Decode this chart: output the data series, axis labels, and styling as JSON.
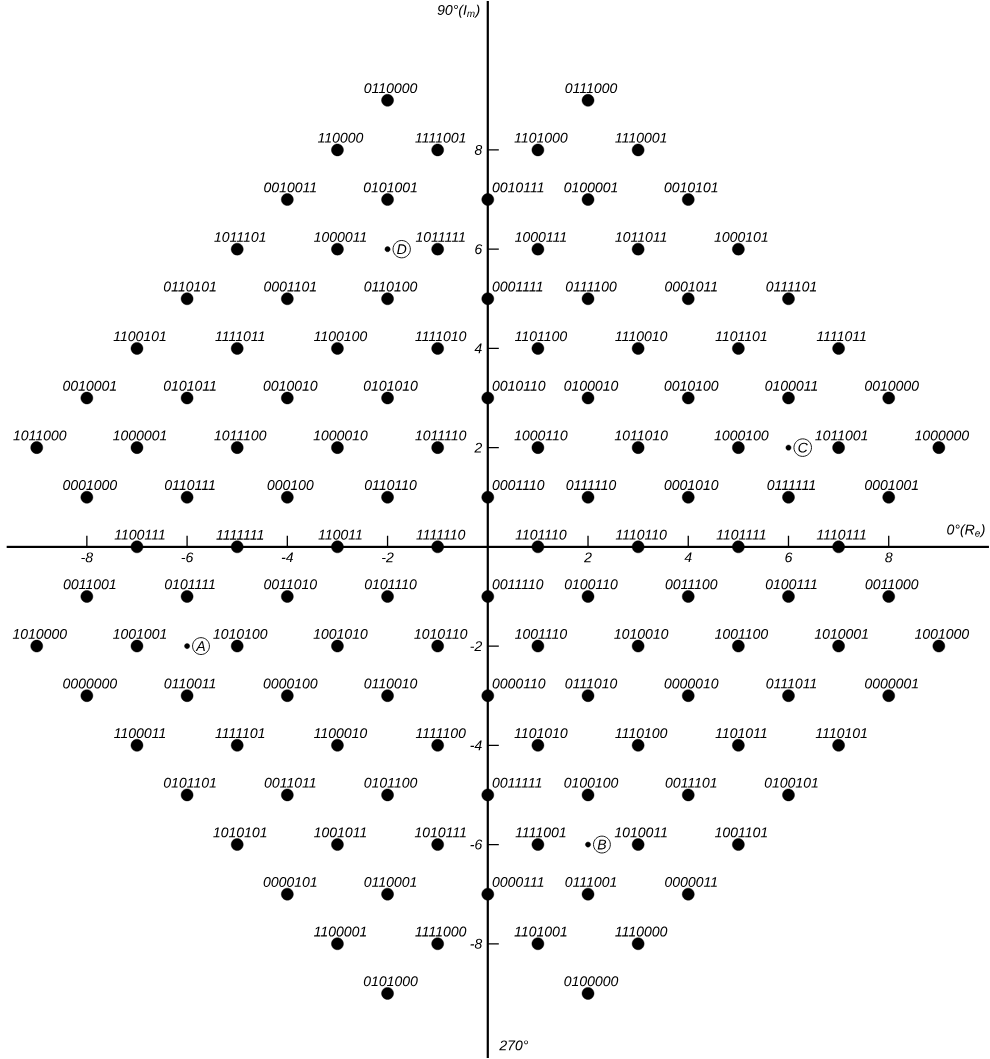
{
  "chart_data": {
    "type": "scatter",
    "xlabel": "0°(R$_{e}$)",
    "ylabel": "90°(I$_{m}$)",
    "xlim": [
      -9.6,
      10
    ],
    "ylim": [
      -10.3,
      11
    ],
    "xticks": [
      -8,
      -6,
      -4,
      -2,
      2,
      4,
      6,
      8
    ],
    "yticks": [
      -8,
      -6,
      -4,
      -2,
      2,
      4,
      6,
      8
    ],
    "grid": false,
    "series": [
      {
        "color": "#000000",
        "x": [
          -2,
          2,
          -3,
          -1,
          1,
          3,
          -4,
          -2,
          0,
          2,
          4,
          -5,
          -3,
          -1,
          1,
          3,
          5,
          -6,
          -4,
          -2,
          0,
          2,
          4,
          6,
          -7,
          -5,
          -3,
          -1,
          1,
          3,
          5,
          7,
          -8,
          -6,
          -4,
          -2,
          0,
          2,
          4,
          6,
          8,
          -9,
          -7,
          -5,
          -3,
          -1,
          1,
          3,
          5,
          7,
          9,
          -8,
          -6,
          -4,
          -2,
          0,
          2,
          4,
          6,
          8,
          -7,
          -5,
          -3,
          -1,
          1,
          3,
          5,
          7,
          -8,
          -6,
          -4,
          -2,
          0,
          2,
          4,
          6,
          8,
          -9,
          -7,
          -5,
          -3,
          -1,
          1,
          3,
          5,
          7,
          9,
          -8,
          -6,
          -4,
          -2,
          0,
          2,
          4,
          6,
          8,
          -7,
          -5,
          -3,
          -1,
          1,
          3,
          5,
          7,
          -6,
          -4,
          -2,
          0,
          2,
          4,
          6,
          -5,
          -3,
          -1,
          1,
          3,
          5,
          -4,
          -2,
          0,
          2,
          4,
          -3,
          -1,
          1,
          3,
          -2,
          2
        ],
        "values": [
          9,
          9,
          8,
          8,
          8,
          8,
          7,
          7,
          7,
          7,
          7,
          6,
          6,
          6,
          6,
          6,
          6,
          5,
          5,
          5,
          5,
          5,
          5,
          5,
          4,
          4,
          4,
          4,
          4,
          4,
          4,
          4,
          3,
          3,
          3,
          3,
          3,
          3,
          3,
          3,
          3,
          2,
          2,
          2,
          2,
          2,
          2,
          2,
          2,
          2,
          2,
          1,
          1,
          1,
          1,
          1,
          1,
          1,
          1,
          1,
          0,
          0,
          0,
          0,
          0,
          0,
          0,
          0,
          -1,
          -1,
          -1,
          -1,
          -1,
          -1,
          -1,
          -1,
          -1,
          -2,
          -2,
          -2,
          -2,
          -2,
          -2,
          -2,
          -2,
          -2,
          -2,
          -3,
          -3,
          -3,
          -3,
          -3,
          -3,
          -3,
          -3,
          -3,
          -4,
          -4,
          -4,
          -4,
          -4,
          -4,
          -4,
          -4,
          -5,
          -5,
          -5,
          -5,
          -5,
          -5,
          -5,
          -6,
          -6,
          -6,
          -6,
          -6,
          -6,
          -7,
          -7,
          -7,
          -7,
          -7,
          -8,
          -8,
          -8,
          -8,
          -9,
          -9
        ]
      },
      {
        "color": "#000000",
        "x": [
          -6,
          2,
          6,
          -2
        ],
        "values": [
          -2,
          -6,
          2,
          6
        ]
      }
    ],
    "annotations": [
      {
        "text": "0110000",
        "x": -2,
        "y": 9
      },
      {
        "text": "0111000",
        "x": 2,
        "y": 9
      },
      {
        "text": "110000",
        "x": -3,
        "y": 8
      },
      {
        "text": "1111001",
        "x": -1,
        "y": 8
      },
      {
        "text": "1101000",
        "x": 1,
        "y": 8
      },
      {
        "text": "1110001",
        "x": 3,
        "y": 8
      },
      {
        "text": "0010011",
        "x": -4,
        "y": 7
      },
      {
        "text": "0101001",
        "x": -2,
        "y": 7
      },
      {
        "text": "0010111",
        "x": 0,
        "y": 7
      },
      {
        "text": "0100001",
        "x": 2,
        "y": 7
      },
      {
        "text": "0010101",
        "x": 4,
        "y": 7
      },
      {
        "text": "1011101",
        "x": -5,
        "y": 6
      },
      {
        "text": "1000011",
        "x": -3,
        "y": 6
      },
      {
        "text": "1011111",
        "x": -1,
        "y": 6
      },
      {
        "text": "1000111",
        "x": 1,
        "y": 6
      },
      {
        "text": "1011011",
        "x": 3,
        "y": 6
      },
      {
        "text": "1000101",
        "x": 5,
        "y": 6
      },
      {
        "text": "0110101",
        "x": -6,
        "y": 5
      },
      {
        "text": "0001101",
        "x": -4,
        "y": 5
      },
      {
        "text": "0110100",
        "x": -2,
        "y": 5
      },
      {
        "text": "0001111",
        "x": 0,
        "y": 5
      },
      {
        "text": "0111100",
        "x": 2,
        "y": 5
      },
      {
        "text": "0001011",
        "x": 4,
        "y": 5
      },
      {
        "text": "0111101",
        "x": 6,
        "y": 5
      },
      {
        "text": "1100101",
        "x": -7,
        "y": 4
      },
      {
        "text": "1111011",
        "x": -5,
        "y": 4
      },
      {
        "text": "1100100",
        "x": -3,
        "y": 4
      },
      {
        "text": "1111010",
        "x": -1,
        "y": 4
      },
      {
        "text": "1101100",
        "x": 1,
        "y": 4
      },
      {
        "text": "1110010",
        "x": 3,
        "y": 4
      },
      {
        "text": "1101101",
        "x": 5,
        "y": 4
      },
      {
        "text": "1111011",
        "x": 7,
        "y": 4
      },
      {
        "text": "0010001",
        "x": -8,
        "y": 3
      },
      {
        "text": "0101011",
        "x": -6,
        "y": 3
      },
      {
        "text": "0010010",
        "x": -4,
        "y": 3
      },
      {
        "text": "0101010",
        "x": -2,
        "y": 3
      },
      {
        "text": "0010110",
        "x": 0,
        "y": 3
      },
      {
        "text": "0100010",
        "x": 2,
        "y": 3
      },
      {
        "text": "0010100",
        "x": 4,
        "y": 3
      },
      {
        "text": "0100011",
        "x": 6,
        "y": 3
      },
      {
        "text": "0010000",
        "x": 8,
        "y": 3
      },
      {
        "text": "1011000",
        "x": -9,
        "y": 2
      },
      {
        "text": "1000001",
        "x": -7,
        "y": 2
      },
      {
        "text": "1011100",
        "x": -5,
        "y": 2
      },
      {
        "text": "1000010",
        "x": -3,
        "y": 2
      },
      {
        "text": "1011110",
        "x": -1,
        "y": 2
      },
      {
        "text": "1000110",
        "x": 1,
        "y": 2
      },
      {
        "text": "1011010",
        "x": 3,
        "y": 2
      },
      {
        "text": "1000100",
        "x": 5,
        "y": 2
      },
      {
        "text": "1011001",
        "x": 7,
        "y": 2
      },
      {
        "text": "1000000",
        "x": 9,
        "y": 2
      },
      {
        "text": "0001000",
        "x": -8,
        "y": 1
      },
      {
        "text": "0110111",
        "x": -6,
        "y": 1
      },
      {
        "text": "000100",
        "x": -4,
        "y": 1
      },
      {
        "text": "0110110",
        "x": -2,
        "y": 1
      },
      {
        "text": "0001110",
        "x": 0,
        "y": 1
      },
      {
        "text": "0111110",
        "x": 2,
        "y": 1
      },
      {
        "text": "0001010",
        "x": 4,
        "y": 1
      },
      {
        "text": "0111111",
        "x": 6,
        "y": 1
      },
      {
        "text": "0001001",
        "x": 8,
        "y": 1
      },
      {
        "text": "1100111",
        "x": -7,
        "y": 0
      },
      {
        "text": "1111111",
        "x": -5,
        "y": 0
      },
      {
        "text": "110011",
        "x": -3,
        "y": 0
      },
      {
        "text": "1111110",
        "x": -1,
        "y": 0
      },
      {
        "text": "1101110",
        "x": 1,
        "y": 0
      },
      {
        "text": "1110110",
        "x": 3,
        "y": 0
      },
      {
        "text": "1101111",
        "x": 5,
        "y": 0
      },
      {
        "text": "1110111",
        "x": 7,
        "y": 0
      },
      {
        "text": "0011001",
        "x": -8,
        "y": -1
      },
      {
        "text": "0101111",
        "x": -6,
        "y": -1
      },
      {
        "text": "0011010",
        "x": -4,
        "y": -1
      },
      {
        "text": "0101110",
        "x": -2,
        "y": -1
      },
      {
        "text": "0011110",
        "x": 0,
        "y": -1
      },
      {
        "text": "0100110",
        "x": 2,
        "y": -1
      },
      {
        "text": "0011100",
        "x": 4,
        "y": -1
      },
      {
        "text": "0100111",
        "x": 6,
        "y": -1
      },
      {
        "text": "0011000",
        "x": 8,
        "y": -1
      },
      {
        "text": "1010000",
        "x": -9,
        "y": -2
      },
      {
        "text": "1001001",
        "x": -7,
        "y": -2
      },
      {
        "text": "1010100",
        "x": -5,
        "y": -2
      },
      {
        "text": "1001010",
        "x": -3,
        "y": -2
      },
      {
        "text": "1010110",
        "x": -1,
        "y": -2
      },
      {
        "text": "1001110",
        "x": 1,
        "y": -2
      },
      {
        "text": "1010010",
        "x": 3,
        "y": -2
      },
      {
        "text": "1001100",
        "x": 5,
        "y": -2
      },
      {
        "text": "1010001",
        "x": 7,
        "y": -2
      },
      {
        "text": "1001000",
        "x": 9,
        "y": -2
      },
      {
        "text": "0000000",
        "x": -8,
        "y": -3
      },
      {
        "text": "0110011",
        "x": -6,
        "y": -3
      },
      {
        "text": "0000100",
        "x": -4,
        "y": -3
      },
      {
        "text": "0110010",
        "x": -2,
        "y": -3
      },
      {
        "text": "0000110",
        "x": 0,
        "y": -3
      },
      {
        "text": "0111010",
        "x": 2,
        "y": -3
      },
      {
        "text": "0000010",
        "x": 4,
        "y": -3
      },
      {
        "text": "0111011",
        "x": 6,
        "y": -3
      },
      {
        "text": "0000001",
        "x": 8,
        "y": -3
      },
      {
        "text": "1100011",
        "x": -7,
        "y": -4
      },
      {
        "text": "1111101",
        "x": -5,
        "y": -4
      },
      {
        "text": "1100010",
        "x": -3,
        "y": -4
      },
      {
        "text": "1111100",
        "x": -1,
        "y": -4
      },
      {
        "text": "1101010",
        "x": 1,
        "y": -4
      },
      {
        "text": "1110100",
        "x": 3,
        "y": -4
      },
      {
        "text": "1101011",
        "x": 5,
        "y": -4
      },
      {
        "text": "1110101",
        "x": 7,
        "y": -4
      },
      {
        "text": "0101101",
        "x": -6,
        "y": -5
      },
      {
        "text": "0011011",
        "x": -4,
        "y": -5
      },
      {
        "text": "0101100",
        "x": -2,
        "y": -5
      },
      {
        "text": "0011111",
        "x": 0,
        "y": -5
      },
      {
        "text": "0100100",
        "x": 2,
        "y": -5
      },
      {
        "text": "0011101",
        "x": 4,
        "y": -5
      },
      {
        "text": "0100101",
        "x": 6,
        "y": -5
      },
      {
        "text": "1010101",
        "x": -5,
        "y": -6
      },
      {
        "text": "1001011",
        "x": -3,
        "y": -6
      },
      {
        "text": "1010111",
        "x": -1,
        "y": -6
      },
      {
        "text": "1111001",
        "x": 1,
        "y": -6
      },
      {
        "text": "1010011",
        "x": 3,
        "y": -6
      },
      {
        "text": "1001101",
        "x": 5,
        "y": -6
      },
      {
        "text": "0000101",
        "x": -4,
        "y": -7
      },
      {
        "text": "0110001",
        "x": -2,
        "y": -7
      },
      {
        "text": "0000111",
        "x": 0,
        "y": -7
      },
      {
        "text": "0111001",
        "x": 2,
        "y": -7
      },
      {
        "text": "0000011",
        "x": 4,
        "y": -7
      },
      {
        "text": "1100001",
        "x": -3,
        "y": -8
      },
      {
        "text": "1111000",
        "x": -1,
        "y": -8
      },
      {
        "text": "1101001",
        "x": 1,
        "y": -8
      },
      {
        "text": "1110000",
        "x": 3,
        "y": -8
      },
      {
        "text": "0101000",
        "x": -2,
        "y": -9
      },
      {
        "text": "0100000",
        "x": 2,
        "y": -9
      },
      {
        "text": "A",
        "x": -6,
        "y": -2
      },
      {
        "text": "B",
        "x": 2,
        "y": -6
      },
      {
        "text": "C",
        "x": 6,
        "y": 2
      },
      {
        "text": "D",
        "x": -2,
        "y": 6
      },
      "270°"
    ]
  }
}
